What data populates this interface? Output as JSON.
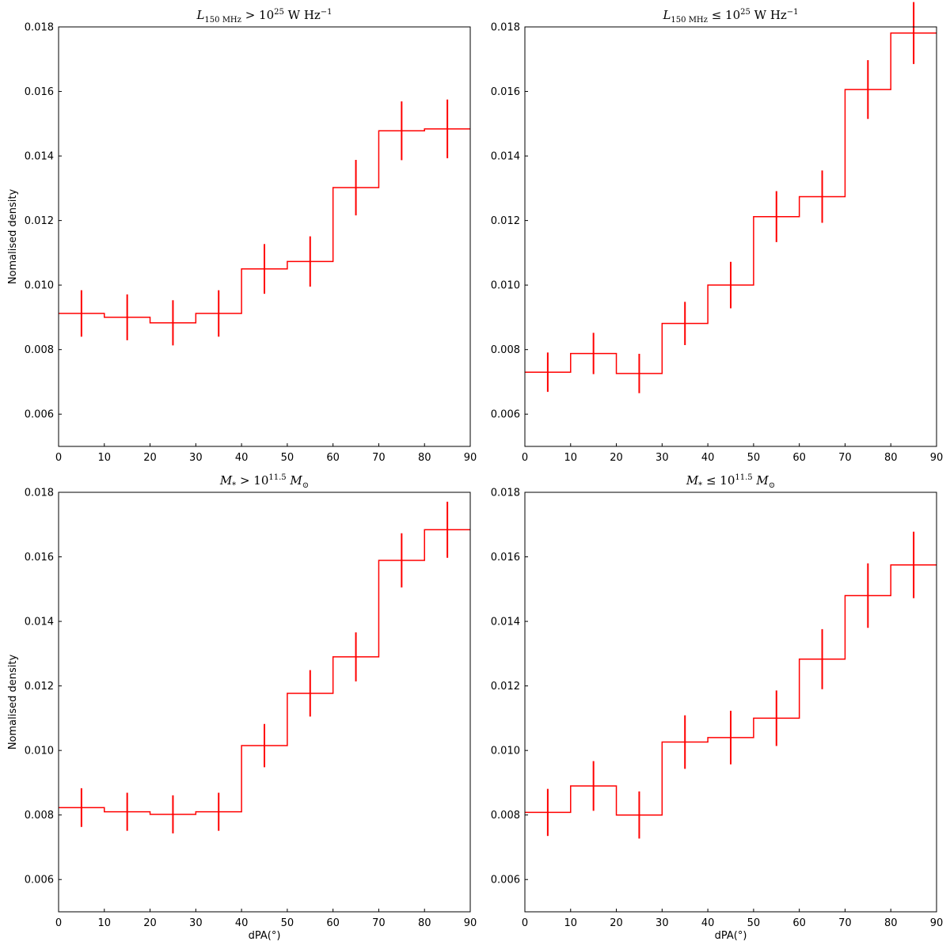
{
  "figure": {
    "titles": [
      {
        "symbol": "L",
        "sub": "150 MHz",
        "rel": " > 10",
        "sup": "25",
        "unit": " W Hz",
        "unit_sup": "−1"
      },
      {
        "symbol": "L",
        "sub": "150 MHz",
        "rel": " ≤ 10",
        "sup": "25",
        "unit": " W Hz",
        "unit_sup": "−1"
      },
      {
        "symbol": "M",
        "sub": "*",
        "rel": " > 10",
        "sup": "11.5",
        "unit": " M",
        "unit_sub": "⊙"
      },
      {
        "symbol": "M",
        "sub": "*",
        "rel": " ≤ 10",
        "sup": "11.5",
        "unit": " M",
        "unit_sub": "⊙"
      }
    ],
    "ylabel": "Nomalised density",
    "xlabel": "dPA(°)",
    "line_color": "#ff0000"
  },
  "chart_data": [
    {
      "type": "step",
      "title": "L150MHz > 10^25 W Hz^-1",
      "bin_edges": [
        0,
        10,
        20,
        30,
        40,
        50,
        60,
        70,
        80,
        90
      ],
      "bin_centers": [
        5,
        15,
        25,
        35,
        45,
        55,
        65,
        75,
        85
      ],
      "values": [
        0.00912,
        0.009,
        0.00883,
        0.00912,
        0.0105,
        0.01073,
        0.01302,
        0.01478,
        0.01484
      ],
      "errors": [
        0.00072,
        0.00071,
        0.0007,
        0.00072,
        0.00077,
        0.00078,
        0.00086,
        0.00091,
        0.00091
      ],
      "xlim": [
        0,
        90
      ],
      "ylim": [
        0.005,
        0.018
      ],
      "xticks": [
        0,
        10,
        20,
        30,
        40,
        50,
        60,
        70,
        80,
        90
      ],
      "yticks": [
        "0.006",
        "0.008",
        "0.010",
        "0.012",
        "0.014",
        "0.016",
        "0.018"
      ],
      "ylabel": "Nomalised density",
      "xlabel": ""
    },
    {
      "type": "step",
      "title": "L150MHz ≤ 10^25 W Hz^-1",
      "bin_edges": [
        0,
        10,
        20,
        30,
        40,
        50,
        60,
        70,
        80,
        90
      ],
      "bin_centers": [
        5,
        15,
        25,
        35,
        45,
        55,
        65,
        75,
        85
      ],
      "values": [
        0.0073,
        0.00788,
        0.00726,
        0.00881,
        0.01,
        0.01212,
        0.01274,
        0.01606,
        0.01781
      ],
      "errors": [
        0.00061,
        0.00064,
        0.00061,
        0.00067,
        0.00072,
        0.00079,
        0.00081,
        0.00091,
        0.00096
      ],
      "xlim": [
        0,
        90
      ],
      "ylim": [
        0.005,
        0.018
      ],
      "xticks": [
        0,
        10,
        20,
        30,
        40,
        50,
        60,
        70,
        80,
        90
      ],
      "yticks": [
        "0.006",
        "0.008",
        "0.010",
        "0.012",
        "0.014",
        "0.016",
        "0.018"
      ],
      "ylabel": "",
      "xlabel": ""
    },
    {
      "type": "step",
      "title": "M* > 10^11.5 Msun",
      "bin_edges": [
        0,
        10,
        20,
        30,
        40,
        50,
        60,
        70,
        80,
        90
      ],
      "bin_centers": [
        5,
        15,
        25,
        35,
        45,
        55,
        65,
        75,
        85
      ],
      "values": [
        0.00823,
        0.0081,
        0.00802,
        0.0081,
        0.01015,
        0.01177,
        0.0129,
        0.01589,
        0.01684
      ],
      "errors": [
        0.0006,
        0.00059,
        0.00059,
        0.00059,
        0.00067,
        0.00072,
        0.00076,
        0.00084,
        0.00087
      ],
      "xlim": [
        0,
        90
      ],
      "ylim": [
        0.005,
        0.018
      ],
      "xticks": [
        0,
        10,
        20,
        30,
        40,
        50,
        60,
        70,
        80,
        90
      ],
      "yticks": [
        "0.006",
        "0.008",
        "0.010",
        "0.012",
        "0.014",
        "0.016",
        "0.018"
      ],
      "ylabel": "Nomalised density",
      "xlabel": "dPA(°)"
    },
    {
      "type": "step",
      "title": "M* ≤ 10^11.5 Msun",
      "bin_edges": [
        0,
        10,
        20,
        30,
        40,
        50,
        60,
        70,
        80,
        90
      ],
      "bin_centers": [
        5,
        15,
        25,
        35,
        45,
        55,
        65,
        75,
        85
      ],
      "values": [
        0.00808,
        0.0089,
        0.008,
        0.01026,
        0.0104,
        0.011,
        0.01283,
        0.0148,
        0.01575
      ],
      "errors": [
        0.00073,
        0.00077,
        0.00073,
        0.00083,
        0.00083,
        0.00086,
        0.00093,
        0.001,
        0.00103
      ],
      "xlim": [
        0,
        90
      ],
      "ylim": [
        0.005,
        0.018
      ],
      "xticks": [
        0,
        10,
        20,
        30,
        40,
        50,
        60,
        70,
        80,
        90
      ],
      "yticks": [
        "0.006",
        "0.008",
        "0.010",
        "0.012",
        "0.014",
        "0.016",
        "0.018"
      ],
      "ylabel": "",
      "xlabel": "dPA(°)"
    }
  ]
}
